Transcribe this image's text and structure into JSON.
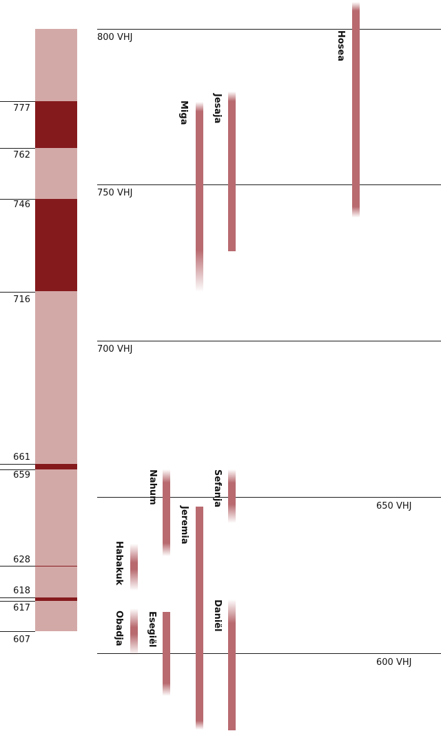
{
  "colors": {
    "timeline_light": "#d3a9a7",
    "timeline_dark": "#851a1d",
    "prophet_bar": "#b86a6f"
  },
  "year_markers": [
    "777",
    "762",
    "746",
    "716",
    "661",
    "659",
    "628",
    "618",
    "617",
    "607"
  ],
  "era_labels": {
    "vhj_800": "800 VHJ",
    "vhj_750": "750 VHJ",
    "vhj_700": "700 VHJ",
    "vhj_650": "650 VHJ",
    "vhj_600": "600 VHJ"
  },
  "prophets": {
    "hosea": "Hosea",
    "jesaja": "Jesaja",
    "miga": "Miga",
    "nahum": "Nahum",
    "jeremia": "Jeremia",
    "sefanja": "Sefanja",
    "habakuk": "Habakuk",
    "obadja": "Obadja",
    "esegiel": "Esegiël",
    "daniel": "Daniël"
  }
}
